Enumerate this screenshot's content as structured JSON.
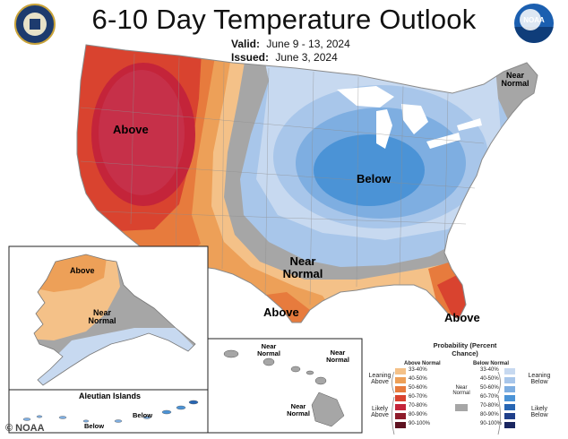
{
  "title": "6-10 Day Temperature Outlook",
  "valid": {
    "label": "Valid:",
    "value": "June 9 - 13, 2024"
  },
  "issued": {
    "label": "Issued:",
    "value": "June 3, 2024"
  },
  "logos": {
    "left": "commerce-seal-icon",
    "right": "noaa-logo-icon",
    "right_text": "NOAA"
  },
  "regions": {
    "west_above": "Above",
    "central_below": "Below",
    "plains_near": "Near Normal",
    "northeast_near": "Near Normal",
    "texas_above": "Above",
    "florida_above": "Above",
    "alaska_above": "Above",
    "alaska_near": "Near Normal",
    "aleutian_title": "Aleutian Islands",
    "aleutian_below_1": "Below",
    "aleutian_below_2": "Below",
    "hawaii_near_1": "Near Normal",
    "hawaii_near_2": "Near Normal",
    "hawaii_near_3": "Near Normal"
  },
  "legend": {
    "title": "Probability (Percent Chance)",
    "above_header": "Above Normal",
    "below_header": "Below Normal",
    "near_label": "Near Normal",
    "leaning_above": "Leaning Above",
    "likely_above": "Likely Above",
    "leaning_below": "Leaning Below",
    "likely_below": "Likely Below",
    "ranges": [
      "33-40%",
      "40-50%",
      "50-60%",
      "60-70%",
      "70-80%",
      "80-90%",
      "90-100%"
    ],
    "above_colors": [
      "#f4c188",
      "#eda058",
      "#e77b3d",
      "#d9432f",
      "#c4243a",
      "#8e1b2a",
      "#5e1220"
    ],
    "below_colors": [
      "#c7d9f0",
      "#a8c6ea",
      "#7eaee1",
      "#4b93d6",
      "#2766b3",
      "#1f3f8a",
      "#1a2660"
    ],
    "near_color": "#a6a6a6"
  },
  "credit": "© NOAA"
}
